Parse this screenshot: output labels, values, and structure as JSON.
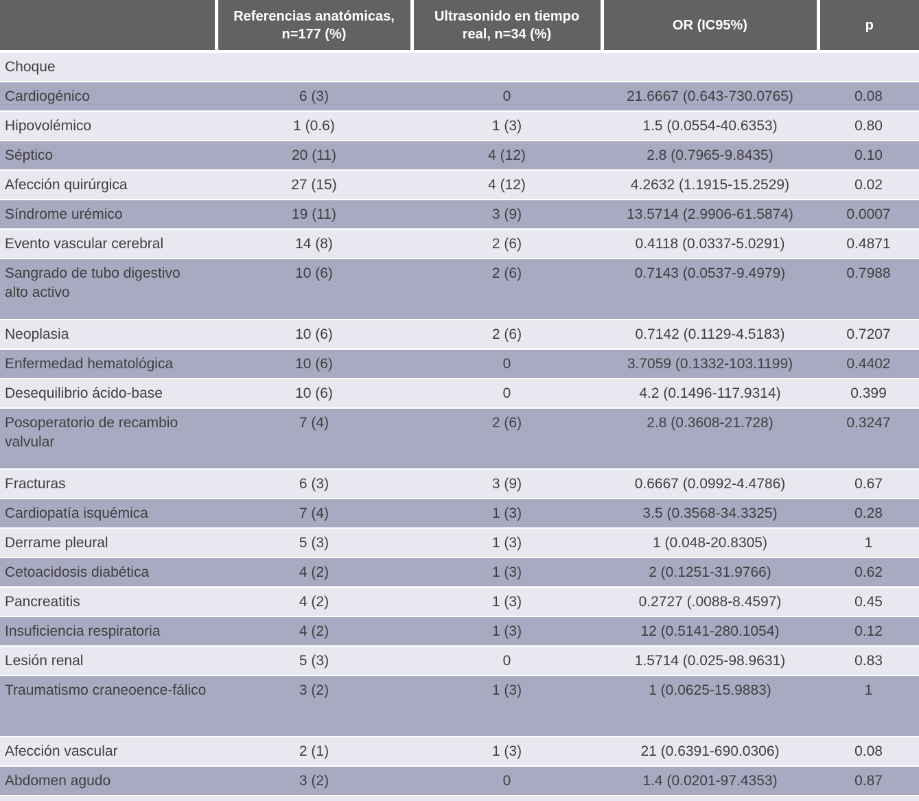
{
  "header": {
    "columns": [
      {
        "label": ""
      },
      {
        "label": "Referencias anatómicas, n=177 (%)"
      },
      {
        "label": "Ultrasonido en tiempo real, n=34 (%)"
      },
      {
        "label": "OR (IC95%)"
      },
      {
        "label": "p"
      }
    ]
  },
  "rows": [
    {
      "label": "Choque",
      "section": true
    },
    {
      "label": "Cardiogénico",
      "referencias": "6 (3)",
      "ultrasonido": "0",
      "or_ic95": "21.6667 (0.643-730.0765)",
      "p": "0.08"
    },
    {
      "label": "Hipovolémico",
      "referencias": "1 (0.6)",
      "ultrasonido": "1 (3)",
      "or_ic95": "1.5 (0.0554-40.6353)",
      "p": "0.80"
    },
    {
      "label": "Séptico",
      "referencias": "20 (11)",
      "ultrasonido": "4 (12)",
      "or_ic95": "2.8 (0.7965-9.8435)",
      "p": "0.10"
    },
    {
      "label": "Afección quirúrgica",
      "referencias": "27 (15)",
      "ultrasonido": "4 (12)",
      "or_ic95": "4.2632 (1.1915-15.2529)",
      "p": "0.02"
    },
    {
      "label": "Síndrome urémico",
      "referencias": "19 (11)",
      "ultrasonido": "3 (9)",
      "or_ic95": "13.5714 (2.9906-61.5874)",
      "p": "0.0007"
    },
    {
      "label": "Evento vascular cerebral",
      "referencias": "14 (8)",
      "ultrasonido": "2 (6)",
      "or_ic95": "0.4118 (0.0337-5.0291)",
      "p": "0.4871"
    },
    {
      "label": "Sangrado de tubo digestivo alto activo",
      "tall": true,
      "referencias": "10 (6)",
      "ultrasonido": "2 (6)",
      "or_ic95": "0.7143 (0.0537-9.4979)",
      "p": "0.7988"
    },
    {
      "label": "Neoplasia",
      "referencias": "10 (6)",
      "ultrasonido": "2 (6)",
      "or_ic95": "0.7142 (0.1129-4.5183)",
      "p": "0.7207"
    },
    {
      "label": "Enfermedad hematológica",
      "referencias": "10 (6)",
      "ultrasonido": "0",
      "or_ic95": "3.7059 (0.1332-103.1199)",
      "p": "0.4402"
    },
    {
      "label": "Desequilibrio ácido-base",
      "referencias": "10 (6)",
      "ultrasonido": "0",
      "or_ic95": "4.2 (0.1496-117.9314)",
      "p": "0.399"
    },
    {
      "label": "Posoperatorio de recambio valvular",
      "tall": true,
      "referencias": "7 (4)",
      "ultrasonido": "2 (6)",
      "or_ic95": "2.8 (0.3608-21.728)",
      "p": "0.3247"
    },
    {
      "label": "Fracturas",
      "referencias": "6 (3)",
      "ultrasonido": "3 (9)",
      "or_ic95": "0.6667 (0.0992-4.4786)",
      "p": "0.67"
    },
    {
      "label": "Cardiopatía isquémica",
      "referencias": "7 (4)",
      "ultrasonido": "1 (3)",
      "or_ic95": "3.5 (0.3568-34.3325)",
      "p": "0.28"
    },
    {
      "label": "Derrame pleural",
      "referencias": "5 (3)",
      "ultrasonido": "1 (3)",
      "or_ic95": "1 (0.048-20.8305)",
      "p": "1"
    },
    {
      "label": "Cetoacidosis diabética",
      "referencias": "4 (2)",
      "ultrasonido": "1 (3)",
      "or_ic95": "2 (0.1251-31.9766)",
      "p": "0.62"
    },
    {
      "label": "Pancreatitis",
      "referencias": "4 (2)",
      "ultrasonido": "1 (3)",
      "or_ic95": "0.2727 (.0088-8.4597)",
      "p": "0.45"
    },
    {
      "label": "Insuficiencia respiratoria",
      "referencias": "4 (2)",
      "ultrasonido": "1 (3)",
      "or_ic95": "12 (0.5141-280.1054)",
      "p": "0.12"
    },
    {
      "label": "Lesión renal",
      "referencias": "5 (3)",
      "ultrasonido": "0",
      "or_ic95": "1.5714 (0.025-98.9631)",
      "p": "0.83"
    },
    {
      "label": "Traumatismo craneoence-fálico",
      "tall": true,
      "referencias": "3 (2)",
      "ultrasonido": "1 (3)",
      "or_ic95": "1 (0.0625-15.9883)",
      "p": "1"
    },
    {
      "label": "Afección vascular",
      "referencias": "2 (1)",
      "ultrasonido": "1 (3)",
      "or_ic95": "21 (0.6391-690.0306)",
      "p": "0.08"
    },
    {
      "label": "Abdomen agudo",
      "referencias": "3 (2)",
      "ultrasonido": "0",
      "or_ic95": "1.4 (0.0201-97.4353)",
      "p": "0.87"
    }
  ],
  "colors": {
    "header_bg": "#626262",
    "header_text": "#ffffff",
    "row_light": "#e8e8f1",
    "row_dark": "#a9aac1",
    "body_text": "#3f3f3f",
    "separator": "#ffffff"
  }
}
